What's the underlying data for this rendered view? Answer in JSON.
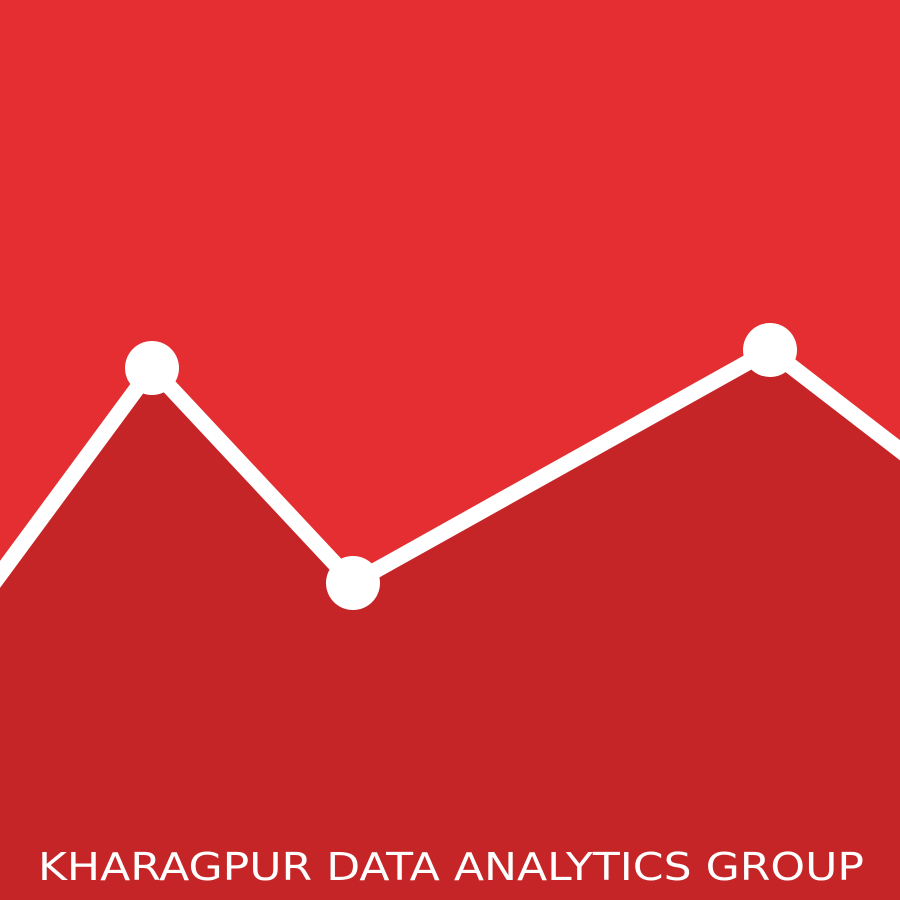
{
  "logo": {
    "text": "KHARAGPUR DATA ANALYTICS GROUP"
  }
}
